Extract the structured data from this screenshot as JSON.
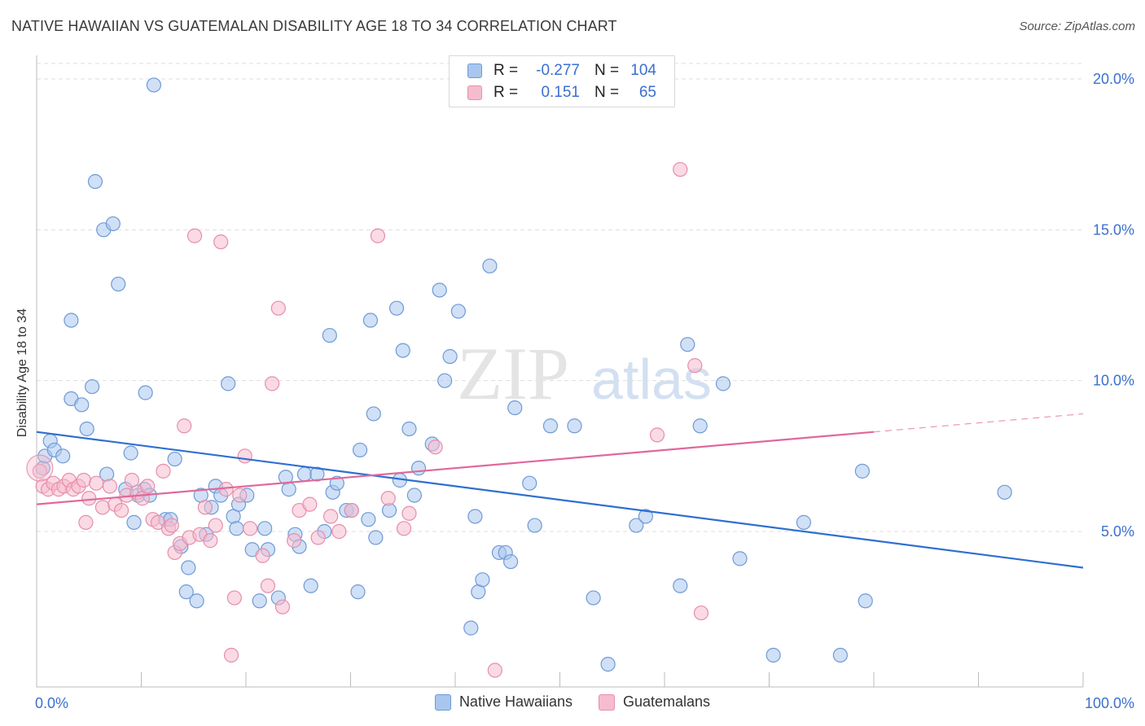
{
  "title": "NATIVE HAWAIIAN VS GUATEMALAN DISABILITY AGE 18 TO 34 CORRELATION CHART",
  "source": "Source: ZipAtlas.com",
  "watermark": {
    "zip": "ZIP",
    "atlas": "atlas"
  },
  "legend": {
    "rows": [
      {
        "r_label": "R =",
        "r_value": "-0.277",
        "n_label": "N =",
        "n_value": "104"
      },
      {
        "r_label": "R =",
        "r_value": "0.151",
        "n_label": "N =",
        "n_value": "65"
      }
    ]
  },
  "bottom_legend": [
    "Native Hawaiians",
    "Guatemalans"
  ],
  "colors": {
    "blue_fill": "#a9c6ee",
    "blue_stroke": "#6f9ad6",
    "blue_line": "#2f6fd1",
    "pink_fill": "#f6bccd",
    "pink_stroke": "#e68eaa",
    "pink_line": "#e0689a",
    "tick_label": "#3b6fd0",
    "grid": "#dedede"
  },
  "chart_data": {
    "type": "scatter",
    "title": "NATIVE HAWAIIAN VS GUATEMALAN DISABILITY AGE 18 TO 34 CORRELATION CHART",
    "xlabel": "",
    "ylabel": "Disability Age 18 to 34",
    "xlim": [
      0,
      100
    ],
    "ylim": [
      0,
      21
    ],
    "x_tick_labels": [
      "0.0%",
      "100.0%"
    ],
    "y_ticks": [
      5,
      10,
      15,
      20
    ],
    "y_tick_labels": [
      "5.0%",
      "10.0%",
      "15.0%",
      "20.0%"
    ],
    "grid": true,
    "legend_position": "top-center",
    "series": [
      {
        "name": "Native Hawaiians",
        "r": -0.277,
        "n": 104,
        "trend": {
          "x": [
            0,
            100
          ],
          "y": [
            8.3,
            3.8
          ],
          "dashed_from": null
        },
        "points": [
          [
            0.6,
            7.1
          ],
          [
            0.8,
            7.5
          ],
          [
            1.3,
            8.0
          ],
          [
            1.7,
            7.7
          ],
          [
            2.5,
            7.5
          ],
          [
            3.3,
            9.4
          ],
          [
            4.3,
            9.2
          ],
          [
            4.8,
            8.4
          ],
          [
            5.3,
            9.8
          ],
          [
            5.6,
            16.6
          ],
          [
            6.4,
            15.0
          ],
          [
            7.3,
            15.2
          ],
          [
            7.8,
            13.2
          ],
          [
            3.3,
            12.0
          ],
          [
            6.7,
            6.9
          ],
          [
            8.5,
            6.4
          ],
          [
            9.0,
            7.6
          ],
          [
            9.3,
            5.3
          ],
          [
            9.7,
            6.2
          ],
          [
            10.3,
            6.4
          ],
          [
            10.4,
            9.6
          ],
          [
            10.8,
            6.2
          ],
          [
            11.2,
            19.8
          ],
          [
            12.3,
            5.4
          ],
          [
            12.8,
            5.4
          ],
          [
            13.2,
            7.4
          ],
          [
            13.8,
            4.5
          ],
          [
            14.3,
            3.0
          ],
          [
            14.5,
            3.8
          ],
          [
            15.3,
            2.7
          ],
          [
            15.7,
            6.2
          ],
          [
            16.2,
            4.9
          ],
          [
            16.7,
            5.8
          ],
          [
            17.1,
            6.5
          ],
          [
            17.6,
            6.2
          ],
          [
            18.3,
            9.9
          ],
          [
            18.8,
            5.5
          ],
          [
            19.1,
            5.1
          ],
          [
            19.3,
            5.9
          ],
          [
            20.1,
            6.2
          ],
          [
            20.6,
            4.4
          ],
          [
            21.3,
            2.7
          ],
          [
            21.8,
            5.1
          ],
          [
            22.1,
            4.4
          ],
          [
            23.1,
            2.8
          ],
          [
            23.8,
            6.8
          ],
          [
            24.1,
            6.4
          ],
          [
            24.7,
            4.9
          ],
          [
            25.1,
            4.5
          ],
          [
            25.6,
            6.9
          ],
          [
            26.2,
            3.2
          ],
          [
            26.8,
            6.9
          ],
          [
            27.5,
            5.0
          ],
          [
            28.0,
            11.5
          ],
          [
            28.3,
            6.3
          ],
          [
            28.7,
            6.6
          ],
          [
            29.6,
            5.7
          ],
          [
            30.1,
            5.7
          ],
          [
            30.7,
            3.0
          ],
          [
            30.9,
            7.7
          ],
          [
            31.7,
            5.4
          ],
          [
            31.9,
            12.0
          ],
          [
            32.2,
            8.9
          ],
          [
            32.4,
            4.8
          ],
          [
            33.7,
            5.7
          ],
          [
            34.4,
            12.4
          ],
          [
            34.7,
            6.7
          ],
          [
            35.0,
            11.0
          ],
          [
            35.6,
            8.4
          ],
          [
            36.1,
            6.2
          ],
          [
            36.5,
            7.1
          ],
          [
            37.8,
            7.9
          ],
          [
            38.5,
            13.0
          ],
          [
            39.0,
            10.0
          ],
          [
            39.5,
            10.8
          ],
          [
            40.3,
            12.3
          ],
          [
            41.5,
            1.8
          ],
          [
            41.9,
            5.5
          ],
          [
            42.2,
            3.0
          ],
          [
            42.6,
            3.4
          ],
          [
            43.3,
            13.8
          ],
          [
            44.2,
            4.3
          ],
          [
            44.8,
            4.3
          ],
          [
            45.3,
            4.0
          ],
          [
            45.7,
            9.1
          ],
          [
            47.1,
            6.6
          ],
          [
            47.6,
            5.2
          ],
          [
            49.1,
            8.5
          ],
          [
            51.4,
            8.5
          ],
          [
            53.2,
            2.8
          ],
          [
            54.6,
            0.6
          ],
          [
            57.3,
            5.2
          ],
          [
            58.2,
            5.5
          ],
          [
            61.5,
            3.2
          ],
          [
            62.2,
            11.2
          ],
          [
            63.4,
            8.5
          ],
          [
            65.6,
            9.9
          ],
          [
            67.2,
            4.1
          ],
          [
            70.4,
            0.9
          ],
          [
            73.3,
            5.3
          ],
          [
            76.8,
            0.9
          ],
          [
            78.9,
            7.0
          ],
          [
            79.2,
            2.7
          ],
          [
            92.5,
            6.3
          ]
        ]
      },
      {
        "name": "Guatemalans",
        "r": 0.151,
        "n": 65,
        "trend": {
          "x": [
            0,
            80,
            100
          ],
          "y": [
            5.9,
            8.3,
            8.9
          ],
          "dashed_from": 80
        },
        "points": [
          [
            0.3,
            7.0
          ],
          [
            0.6,
            6.5
          ],
          [
            1.1,
            6.4
          ],
          [
            1.6,
            6.6
          ],
          [
            2.1,
            6.4
          ],
          [
            2.6,
            6.5
          ],
          [
            3.1,
            6.7
          ],
          [
            3.5,
            6.4
          ],
          [
            4.0,
            6.5
          ],
          [
            4.5,
            6.7
          ],
          [
            4.7,
            5.3
          ],
          [
            5.0,
            6.1
          ],
          [
            5.7,
            6.6
          ],
          [
            6.3,
            5.8
          ],
          [
            7.0,
            6.5
          ],
          [
            7.5,
            5.9
          ],
          [
            8.1,
            5.7
          ],
          [
            8.6,
            6.2
          ],
          [
            9.1,
            6.7
          ],
          [
            9.6,
            6.3
          ],
          [
            10.1,
            6.1
          ],
          [
            10.6,
            6.5
          ],
          [
            11.1,
            5.4
          ],
          [
            11.6,
            5.3
          ],
          [
            12.1,
            7.0
          ],
          [
            12.6,
            5.1
          ],
          [
            12.9,
            5.2
          ],
          [
            13.2,
            4.3
          ],
          [
            13.7,
            4.6
          ],
          [
            14.1,
            8.5
          ],
          [
            14.6,
            4.8
          ],
          [
            15.1,
            14.8
          ],
          [
            15.6,
            4.9
          ],
          [
            16.1,
            5.8
          ],
          [
            16.6,
            4.7
          ],
          [
            17.1,
            5.2
          ],
          [
            17.6,
            14.6
          ],
          [
            18.1,
            6.4
          ],
          [
            18.6,
            0.9
          ],
          [
            18.9,
            2.8
          ],
          [
            19.4,
            6.2
          ],
          [
            19.9,
            7.5
          ],
          [
            20.4,
            5.1
          ],
          [
            21.6,
            4.2
          ],
          [
            22.1,
            3.2
          ],
          [
            22.5,
            9.9
          ],
          [
            23.1,
            12.4
          ],
          [
            23.5,
            2.5
          ],
          [
            24.6,
            4.7
          ],
          [
            25.1,
            5.7
          ],
          [
            26.1,
            5.9
          ],
          [
            26.9,
            4.8
          ],
          [
            28.1,
            5.5
          ],
          [
            28.9,
            5.0
          ],
          [
            30.1,
            5.7
          ],
          [
            32.6,
            14.8
          ],
          [
            33.6,
            6.1
          ],
          [
            35.1,
            5.1
          ],
          [
            35.6,
            5.6
          ],
          [
            38.1,
            7.8
          ],
          [
            43.8,
            0.4
          ],
          [
            59.3,
            8.2
          ],
          [
            61.5,
            17.0
          ],
          [
            62.9,
            10.5
          ],
          [
            63.5,
            2.3
          ]
        ]
      }
    ]
  }
}
